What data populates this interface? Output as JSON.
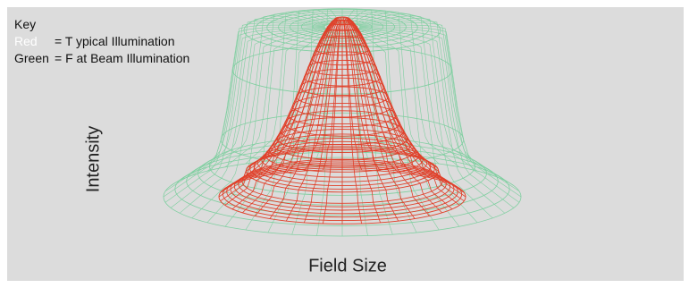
{
  "legend": {
    "title": "Key",
    "red_word": "Red",
    "red_text": "= T ypical Illumination",
    "green_word": "Green",
    "green_text": "= F at Beam Illumination"
  },
  "axes": {
    "ylabel": "Intensity",
    "xlabel": "Field Size"
  },
  "colors": {
    "background": "#dcdcdc",
    "red_mesh": "#e0402a",
    "green_mesh": "#7fcfa0"
  }
}
